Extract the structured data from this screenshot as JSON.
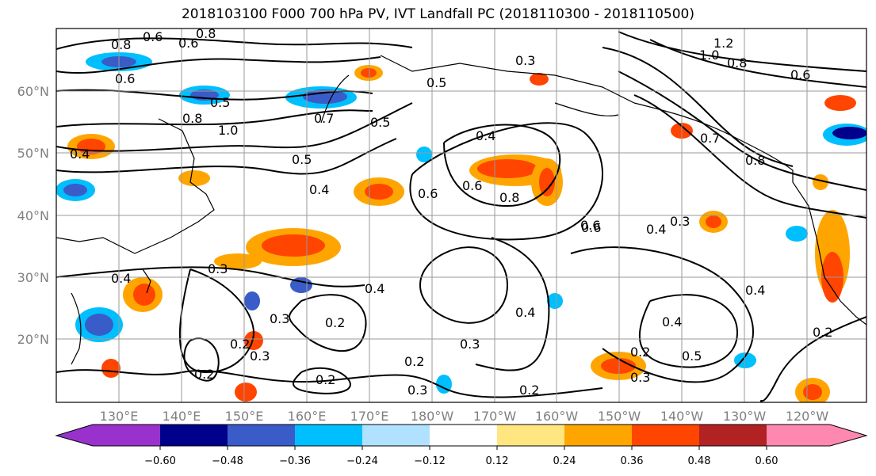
{
  "title": "2018103100 F000 700 hPa PV, IVT Landfall PC (2018110300 - 2018110500)",
  "map": {
    "lat_labels": [
      "60°N",
      "50°N",
      "40°N",
      "30°N",
      "20°N"
    ],
    "lon_labels": [
      "130°E",
      "140°E",
      "150°E",
      "160°E",
      "170°E",
      "180°W",
      "170°W",
      "160°W",
      "150°W",
      "140°W",
      "130°W",
      "120°W"
    ],
    "contour_labels": [
      "0.6",
      "0.8",
      "0.6",
      "0.8",
      "0.5",
      "1.0",
      "0.8",
      "0.6",
      "1.2",
      "1.0",
      "0.8",
      "0.6",
      "0.5",
      "0.7",
      "0.5",
      "0.4",
      "0.3",
      "0.4",
      "0.5",
      "0.4",
      "0.6",
      "0.6",
      "0.8",
      "0.6",
      "0.4",
      "0.3",
      "0.7",
      "0.8",
      "0.4",
      "0.3",
      "0.4",
      "0.3",
      "0.4",
      "0.2",
      "0.2",
      "0.3",
      "0.2",
      "0.4",
      "0.3",
      "0.3",
      "0.4",
      "0.2",
      "0.5",
      "0.2",
      "0.3",
      "0.2",
      "0.2",
      "0.6",
      "0.2"
    ]
  },
  "colorbar": {
    "ticks": [
      "−0.60",
      "−0.48",
      "−0.36",
      "−0.24",
      "−0.12",
      "0.12",
      "0.24",
      "0.36",
      "0.48",
      "0.60"
    ],
    "colors": [
      "#9932cc",
      "#00008b",
      "#3a5cc8",
      "#00bfff",
      "#b0e2ff",
      "#ffffff",
      "#ffe680",
      "#ffa500",
      "#ff4500",
      "#b22222",
      "#ff88b0"
    ]
  }
}
